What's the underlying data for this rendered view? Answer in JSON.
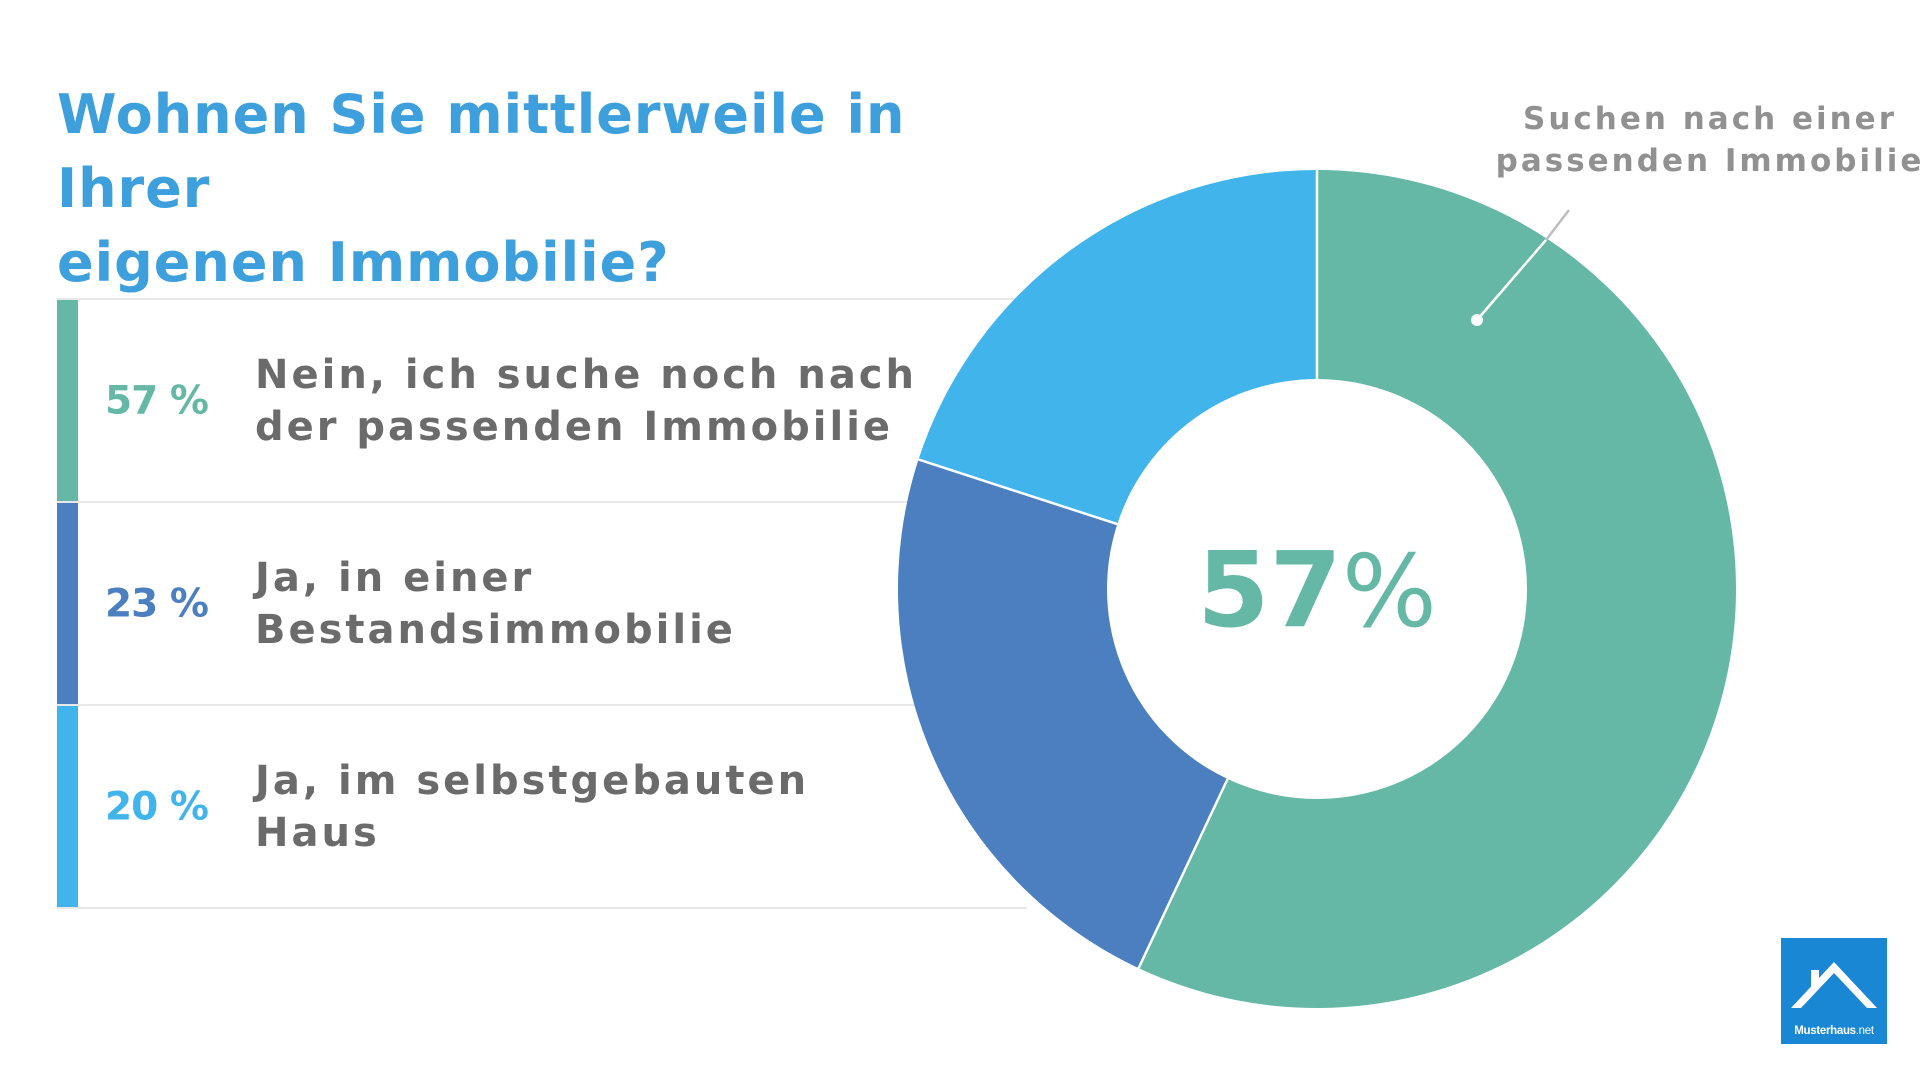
{
  "title": {
    "line1": "Wohnen Sie mittlerweile in Ihrer",
    "line2": "eigenen Immobilie?"
  },
  "colors": {
    "title": "#3d9fdc",
    "text": "#6b6b6b",
    "callout": "#919191",
    "divider": "#e8e8e8",
    "logo_bg": "#1a87d5"
  },
  "legend": [
    {
      "percent_label": "57 %",
      "label_line1": "Nein, ich suche noch nach",
      "label_line2": "der passenden Immobilie",
      "color": "#66b8a6"
    },
    {
      "percent_label": "23 %",
      "label_line1": "Ja, in einer",
      "label_line2": "Bestandsimmobilie",
      "color": "#4c7fc0"
    },
    {
      "percent_label": "20 %",
      "label_line1": "Ja, im selbstgebauten",
      "label_line2": "Haus",
      "color": "#42b4ec"
    }
  ],
  "center": {
    "number": "57",
    "symbol": "%"
  },
  "callout": {
    "line1": "Suchen nach einer",
    "line2": "passenden Immobilie"
  },
  "logo": {
    "brand_bold": "Musterhaus",
    "brand_suffix": ".net",
    "icon": "house-roof-icon"
  },
  "chart_data": {
    "type": "pie",
    "variant": "donut",
    "title": "Wohnen Sie mittlerweile in Ihrer eigenen Immobilie?",
    "categories": [
      "Nein, ich suche noch nach der passenden Immobilie",
      "Ja, in einer Bestandsimmobilie",
      "Ja, im selbstgebauten Haus"
    ],
    "values": [
      57,
      23,
      20
    ],
    "unit": "%",
    "colors": [
      "#66b8a6",
      "#4c7fc0",
      "#42b4ec"
    ],
    "start_angle": "12 o'clock",
    "direction": "clockwise",
    "center_label": "57%",
    "annotation": "Suchen nach einer passenden Immobilie",
    "annotation_target": "Nein, ich suche noch nach der passenden Immobilie",
    "legend_position": "left"
  }
}
